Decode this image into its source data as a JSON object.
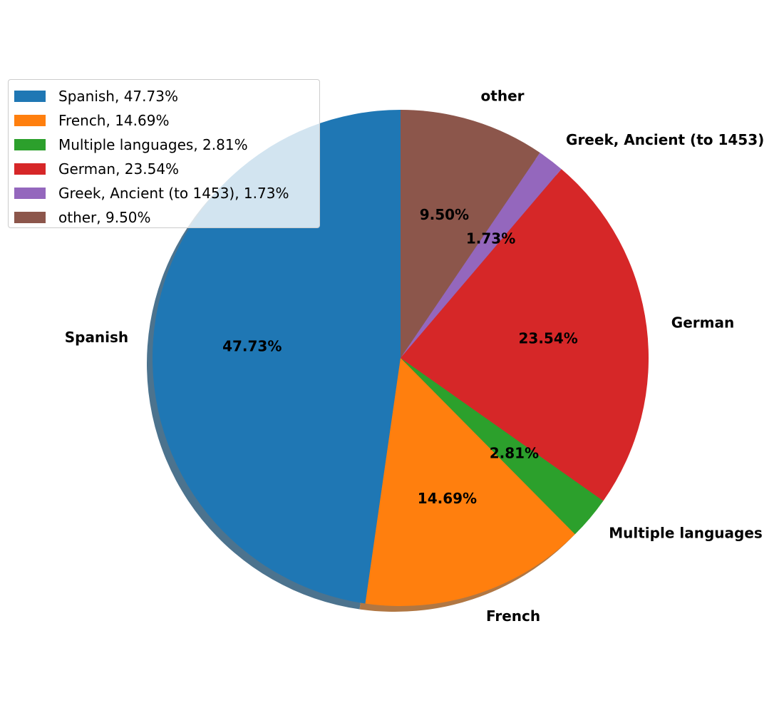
{
  "chart_data": {
    "type": "pie",
    "slices": [
      {
        "label": "Spanish",
        "value": 47.73,
        "pct_label": "47.73%",
        "legend": "Spanish, 47.73%",
        "color": "#1f77b4"
      },
      {
        "label": "French",
        "value": 14.69,
        "pct_label": "14.69%",
        "legend": "French, 14.69%",
        "color": "#ff7f0e"
      },
      {
        "label": "Multiple languages",
        "value": 2.81,
        "pct_label": "2.81%",
        "legend": "Multiple languages, 2.81%",
        "color": "#2ca02c"
      },
      {
        "label": "German",
        "value": 23.54,
        "pct_label": "23.54%",
        "legend": "German, 23.54%",
        "color": "#d62728"
      },
      {
        "label": "Greek, Ancient (to 1453)",
        "value": 1.73,
        "pct_label": "1.73%",
        "legend": "Greek, Ancient (to 1453), 1.73%",
        "color": "#9467bd"
      },
      {
        "label": "other",
        "value": 9.5,
        "pct_label": "9.50%",
        "legend": "other, 9.50%",
        "color": "#8c564b"
      }
    ],
    "start_angle": 90,
    "direction": "counterclockwise",
    "shadow": true,
    "legend_placement": "upper-left"
  }
}
